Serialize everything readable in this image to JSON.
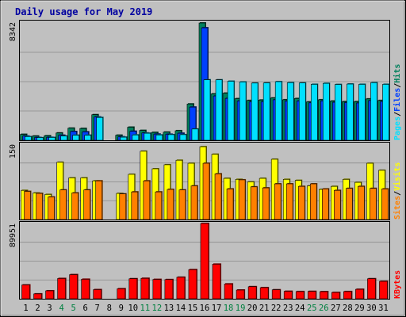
{
  "chart_data": [
    {
      "type": "bar",
      "title": "Daily usage for May 2019",
      "categories": [
        "1",
        "2",
        "3",
        "4",
        "5",
        "6",
        "7",
        "8",
        "9",
        "10",
        "11",
        "12",
        "13",
        "14",
        "15",
        "16",
        "17",
        "18",
        "19",
        "20",
        "21",
        "22",
        "23",
        "24",
        "25",
        "26",
        "27",
        "28",
        "29",
        "30",
        "31"
      ],
      "weekend_days": [
        "4",
        "5",
        "11",
        "12",
        "18",
        "19",
        "25",
        "26"
      ],
      "panels": [
        {
          "name": "hits-files-pages",
          "ymax": 8342,
          "ymax_label": "8342",
          "legend": [
            "Pages",
            "/",
            "Files",
            "/",
            "Hits"
          ],
          "series": [
            {
              "name": "Hits",
              "color": "#00805c",
              "values": [
                420,
                300,
                320,
                520,
                860,
                840,
                1820,
                0,
                360,
                930,
                700,
                560,
                580,
                680,
                2580,
                8342,
                3300,
                3350,
                2960,
                2830,
                2860,
                3010,
                2880,
                2970,
                2730,
                2880,
                2790,
                2750,
                2750,
                2940,
                2830
              ]
            },
            {
              "name": "Files",
              "color": "#0040ff",
              "values": [
                300,
                200,
                210,
                360,
                620,
                600,
                1660,
                0,
                250,
                640,
                520,
                440,
                430,
                500,
                2360,
                8000,
                3150,
                2980,
                2800,
                2730,
                2740,
                2880,
                2790,
                2800,
                2660,
                2800,
                2700,
                2680,
                2650,
                2820,
                2750
              ]
            },
            {
              "name": "Pages",
              "color": "#00e0ff",
              "values": [
                260,
                180,
                200,
                300,
                360,
                360,
                1620,
                0,
                220,
                380,
                500,
                380,
                400,
                400,
                800,
                4300,
                4300,
                4200,
                4150,
                4070,
                4080,
                4170,
                4100,
                4080,
                3980,
                4050,
                3970,
                4000,
                3980,
                4100,
                3980
              ]
            }
          ]
        },
        {
          "name": "visits-sites",
          "ymax": 150,
          "ymax_label": "150",
          "legend": [
            "Sites",
            "/",
            "Visits"
          ],
          "series": [
            {
              "name": "Visits",
              "color": "#ffff00",
              "values": [
                58,
                53,
                50,
                114,
                83,
                83,
                77,
                0,
                52,
                90,
                136,
                101,
                109,
                118,
                112,
                145,
                130,
                82,
                80,
                75,
                82,
                120,
                80,
                78,
                67,
                60,
                66,
                80,
                74,
                112,
                98
              ]
            },
            {
              "name": "Sites",
              "color": "#ff8000",
              "values": [
                56,
                52,
                45,
                59,
                53,
                59,
                77,
                0,
                51,
                55,
                77,
                55,
                60,
                59,
                67,
                112,
                91,
                61,
                79,
                65,
                63,
                71,
                71,
                66,
                71,
                61,
                58,
                62,
                66,
                62,
                61
              ]
            }
          ]
        },
        {
          "name": "kbytes",
          "ymax": 89951,
          "ymax_label": "89951",
          "legend": [
            "KBytes"
          ],
          "series": [
            {
              "name": "KBytes",
              "color": "#ff0000",
              "values": [
                16500,
                5800,
                9500,
                24200,
                28800,
                23300,
                10900,
                0,
                12000,
                23900,
                24400,
                23100,
                22900,
                25700,
                34800,
                89951,
                41300,
                17700,
                10400,
                14400,
                13300,
                10700,
                8900,
                8600,
                8800,
                8500,
                7600,
                8600,
                11300,
                23900,
                20800
              ]
            }
          ]
        }
      ]
    }
  ]
}
